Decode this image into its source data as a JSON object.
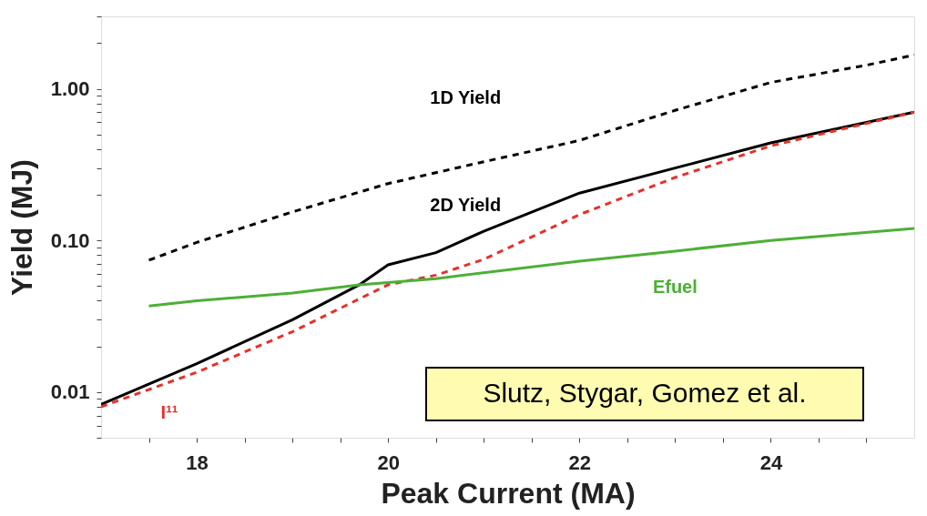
{
  "chart_data": {
    "type": "line",
    "xlabel": "Peak Current (MA)",
    "ylabel": "Yield (MJ)",
    "log": "y",
    "grid": false,
    "marker": "none",
    "xlim": [
      17,
      25.5
    ],
    "ylim": [
      0.005,
      3
    ],
    "xticks": [
      {
        "value": 17.5,
        "label": null
      },
      18,
      {
        "value": 18.5,
        "label": null
      },
      {
        "value": 19,
        "label": null
      },
      {
        "value": 19.5,
        "label": null
      },
      20,
      {
        "value": 20.5,
        "label": null
      },
      {
        "value": 21,
        "label": null
      },
      {
        "value": 21.5,
        "label": null
      },
      22,
      {
        "value": 22.5,
        "label": null
      },
      {
        "value": 23,
        "label": null
      },
      {
        "value": 23.5,
        "label": null
      },
      24,
      {
        "value": 24.5,
        "label": null
      },
      {
        "value": 25,
        "label": null
      }
    ],
    "yticks": [
      {
        "value": 0.005,
        "label": null
      },
      {
        "value": 0.006,
        "label": null
      },
      {
        "value": 0.007,
        "label": null
      },
      {
        "value": 0.008,
        "label": null
      },
      {
        "value": 0.009,
        "label": null
      },
      0.01,
      {
        "value": 0.02,
        "label": null
      },
      {
        "value": 0.03,
        "label": null
      },
      {
        "value": 0.04,
        "label": null
      },
      {
        "value": 0.05,
        "label": null
      },
      {
        "value": 0.06,
        "label": null
      },
      {
        "value": 0.07,
        "label": null
      },
      {
        "value": 0.08,
        "label": null
      },
      {
        "value": 0.09,
        "label": null
      },
      {
        "value": 0.1,
        "label": "0.10"
      },
      {
        "value": 0.2,
        "label": null
      },
      {
        "value": 0.3,
        "label": null
      },
      {
        "value": 0.4,
        "label": null
      },
      {
        "value": 0.5,
        "label": null
      },
      {
        "value": 0.6,
        "label": null
      },
      {
        "value": 0.7,
        "label": null
      },
      {
        "value": 0.8,
        "label": null
      },
      {
        "value": 0.9,
        "label": null
      },
      {
        "value": 1,
        "label": "1.00"
      },
      {
        "value": 2,
        "label": null
      },
      {
        "value": 3,
        "label": null
      }
    ],
    "series": [
      {
        "name": "1D Yield",
        "color": "#000000",
        "line_style": "dashed",
        "x": [
          17.5,
          18,
          19,
          20,
          21,
          22,
          23,
          24,
          25,
          25.5
        ],
        "values": [
          0.074,
          0.097,
          0.154,
          0.237,
          0.33,
          0.456,
          0.72,
          1.1,
          1.43,
          1.67
        ]
      },
      {
        "name": "2D Yield",
        "color": "#000000",
        "line_style": "solid",
        "x": [
          17,
          18,
          19,
          19.7,
          20,
          20.5,
          21,
          22,
          23,
          24,
          25,
          25.5
        ],
        "values": [
          0.0083,
          0.0154,
          0.03,
          0.051,
          0.069,
          0.083,
          0.115,
          0.205,
          0.3,
          0.44,
          0.6,
          0.7
        ]
      },
      {
        "name": "I¹¹",
        "color": "#e8302a",
        "line_style": "dashed",
        "x": [
          17,
          18,
          19,
          20,
          20.5,
          21,
          22,
          23,
          24,
          25.5
        ],
        "values": [
          0.008,
          0.0135,
          0.025,
          0.051,
          0.059,
          0.075,
          0.148,
          0.26,
          0.42,
          0.7
        ]
      },
      {
        "name": "Efuel",
        "color": "#4cb035",
        "line_style": "solid",
        "x": [
          17.5,
          18,
          19,
          19.7,
          20.5,
          22,
          23,
          24,
          25.5
        ],
        "values": [
          0.037,
          0.04,
          0.045,
          0.051,
          0.056,
          0.073,
          0.085,
          0.1,
          0.12
        ]
      }
    ],
    "annotations": [
      "Slutz, Stygar, Gomez et al."
    ]
  }
}
